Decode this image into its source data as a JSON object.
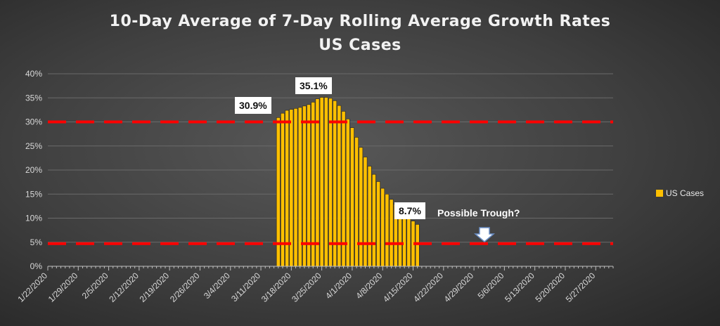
{
  "title_line1": "10-Day Average of 7-Day Rolling Average Growth Rates",
  "title_line2": "US Cases",
  "colors": {
    "bar": "#ffc000",
    "bar_stroke": "#222222",
    "dashed": "#ff0000",
    "axis": "#bfbfbf",
    "text": "#d9d9d9"
  },
  "legend": {
    "label": "US Cases"
  },
  "callouts": {
    "start": "30.9%",
    "peak": "35.1%",
    "latest": "8.7%"
  },
  "annotation": {
    "text": "Possible Trough?",
    "arrow_icon": "down-arrow-icon"
  },
  "chart_data": {
    "type": "bar",
    "title": "10-Day Average of 7-Day Rolling Average Growth Rates",
    "subtitle": "US Cases",
    "series": [
      {
        "name": "US Cases"
      }
    ],
    "start_date": "2020-01-22",
    "end_date": "2020-05-31",
    "x_tick_labels": [
      "1/22/2020",
      "1/29/2020",
      "2/5/2020",
      "2/12/2020",
      "2/19/2020",
      "2/26/2020",
      "3/4/2020",
      "3/11/2020",
      "3/18/2020",
      "3/25/2020",
      "4/1/2020",
      "4/8/2020",
      "4/15/2020",
      "4/22/2020",
      "4/29/2020",
      "5/6/2020",
      "5/13/2020",
      "5/20/2020",
      "5/27/2020"
    ],
    "ylim": [
      0,
      40
    ],
    "y_tick_labels": [
      "0%",
      "5%",
      "10%",
      "15%",
      "20%",
      "25%",
      "30%",
      "35%",
      "40%"
    ],
    "y_unit": "%",
    "grid": true,
    "legend_position": "right",
    "points": [
      {
        "date": "3/15/2020",
        "value": 30.9
      },
      {
        "date": "3/16/2020",
        "value": 31.8
      },
      {
        "date": "3/17/2020",
        "value": 32.4
      },
      {
        "date": "3/18/2020",
        "value": 32.6
      },
      {
        "date": "3/19/2020",
        "value": 32.8
      },
      {
        "date": "3/20/2020",
        "value": 33.0
      },
      {
        "date": "3/21/2020",
        "value": 33.3
      },
      {
        "date": "3/22/2020",
        "value": 33.6
      },
      {
        "date": "3/23/2020",
        "value": 34.1
      },
      {
        "date": "3/24/2020",
        "value": 34.8
      },
      {
        "date": "3/25/2020",
        "value": 35.1
      },
      {
        "date": "3/26/2020",
        "value": 35.1
      },
      {
        "date": "3/27/2020",
        "value": 34.9
      },
      {
        "date": "3/28/2020",
        "value": 34.4
      },
      {
        "date": "3/29/2020",
        "value": 33.4
      },
      {
        "date": "3/30/2020",
        "value": 32.2
      },
      {
        "date": "3/31/2020",
        "value": 30.6
      },
      {
        "date": "4/1/2020",
        "value": 28.8
      },
      {
        "date": "4/2/2020",
        "value": 26.8
      },
      {
        "date": "4/3/2020",
        "value": 24.7
      },
      {
        "date": "4/4/2020",
        "value": 22.7
      },
      {
        "date": "4/5/2020",
        "value": 20.8
      },
      {
        "date": "4/6/2020",
        "value": 19.1
      },
      {
        "date": "4/7/2020",
        "value": 17.6
      },
      {
        "date": "4/8/2020",
        "value": 16.2
      },
      {
        "date": "4/9/2020",
        "value": 15.0
      },
      {
        "date": "4/10/2020",
        "value": 13.9
      },
      {
        "date": "4/11/2020",
        "value": 12.9
      },
      {
        "date": "4/12/2020",
        "value": 11.9
      },
      {
        "date": "4/13/2020",
        "value": 10.9
      },
      {
        "date": "4/14/2020",
        "value": 10.1
      },
      {
        "date": "4/15/2020",
        "value": 9.4
      },
      {
        "date": "4/16/2020",
        "value": 8.7
      }
    ],
    "reference_lines": [
      {
        "value": 30.0,
        "style": "dashed",
        "color": "#ff0000"
      },
      {
        "value": 4.7,
        "style": "dashed",
        "color": "#ff0000"
      }
    ]
  }
}
